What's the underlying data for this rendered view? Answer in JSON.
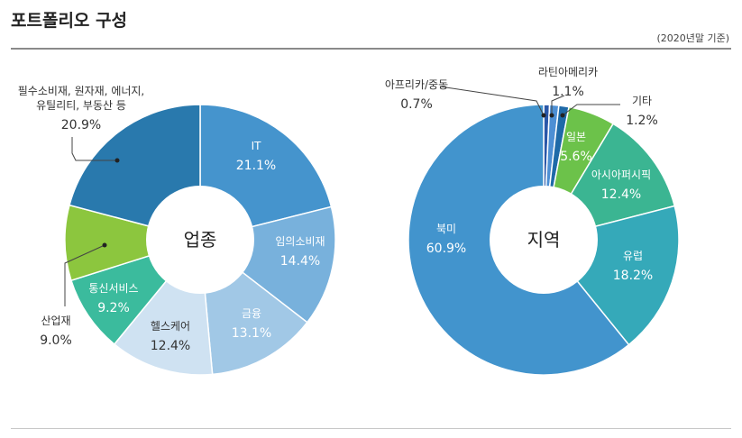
{
  "header": {
    "title": "포트폴리오 구성",
    "note": "(2020년말 기준)"
  },
  "chart_data": [
    {
      "type": "pie",
      "title": "업종",
      "slices": [
        {
          "label": "IT",
          "value": 21.1,
          "value_text": "21.1%",
          "color": "#4594cd"
        },
        {
          "label": "임의소비재",
          "value": 14.4,
          "value_text": "14.4%",
          "color": "#78b1dc"
        },
        {
          "label": "금융",
          "value": 13.1,
          "value_text": "13.1%",
          "color": "#a1c8e6"
        },
        {
          "label": "헬스케어",
          "value": 12.4,
          "value_text": "12.4%",
          "color": "#cfe2f2"
        },
        {
          "label": "통신서비스",
          "value": 9.2,
          "value_text": "9.2%",
          "color": "#3bbb9d"
        },
        {
          "label": "산업재",
          "value": 9.0,
          "value_text": "9.0%",
          "color": "#8cc63e"
        },
        {
          "label": "필수소비재, 원자재, 에너지, 유틸리티, 부동산 등",
          "label_lines": [
            "필수소비재, 원자재, 에너지,",
            "유틸리티, 부동산 등"
          ],
          "value": 20.9,
          "value_text": "20.9%",
          "color": "#2979ad"
        }
      ]
    },
    {
      "type": "pie",
      "title": "지역",
      "slices": [
        {
          "label": "아프리카/중동",
          "value": 0.7,
          "value_text": "0.7%",
          "color": "#2a57a8"
        },
        {
          "label": "라틴아메리카",
          "value": 1.1,
          "value_text": "1.1%",
          "color": "#4d8fd4"
        },
        {
          "label": "기타",
          "value": 1.2,
          "value_text": "1.2%",
          "color": "#1f6aa8"
        },
        {
          "label": "일본",
          "value": 5.6,
          "value_text": "5.6%",
          "color": "#6cc24a"
        },
        {
          "label": "아시아퍼시픽",
          "value": 12.4,
          "value_text": "12.4%",
          "color": "#3bb592"
        },
        {
          "label": "유럽",
          "value": 18.2,
          "value_text": "18.2%",
          "color": "#35a9b9"
        },
        {
          "label": "북미",
          "value": 60.9,
          "value_text": "60.9%",
          "color": "#4294cd"
        }
      ]
    }
  ]
}
